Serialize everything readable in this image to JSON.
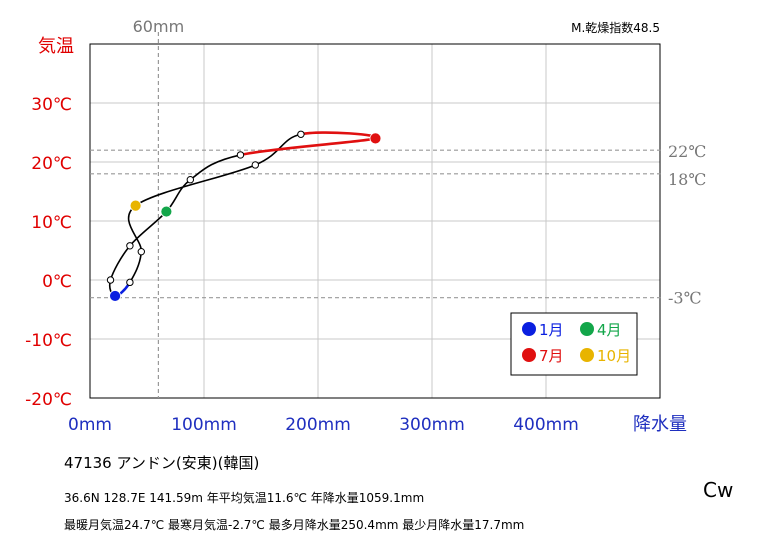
{
  "chart_data": {
    "type": "line",
    "y_axis_title": "気温",
    "x_axis_title": "降水量",
    "ylim": [
      -20,
      40
    ],
    "xlim": [
      0,
      500
    ],
    "y_ticks": [
      {
        "value": 30,
        "label": "30℃"
      },
      {
        "value": 20,
        "label": "20℃"
      },
      {
        "value": 10,
        "label": "10℃"
      },
      {
        "value": 0,
        "label": "0℃"
      },
      {
        "value": -10,
        "label": "-10℃"
      },
      {
        "value": -20,
        "label": "-20℃"
      }
    ],
    "x_ticks": [
      {
        "value": 0,
        "label": "0mm"
      },
      {
        "value": 100,
        "label": "100mm"
      },
      {
        "value": 200,
        "label": "200mm"
      },
      {
        "value": 300,
        "label": "300mm"
      },
      {
        "value": 400,
        "label": "400mm"
      }
    ],
    "reference_lines": {
      "vertical": [
        {
          "value": 60,
          "label": "60mm"
        }
      ],
      "horizontal": [
        {
          "value": 22,
          "label": "22℃"
        },
        {
          "value": 18,
          "label": "18℃"
        },
        {
          "value": -3,
          "label": "-3℃"
        }
      ]
    },
    "aridity_label": "M.乾燥指数48.5",
    "months": [
      {
        "month": 1,
        "precip": 22,
        "temp": -2.7
      },
      {
        "month": 2,
        "precip": 18,
        "temp": 0.0
      },
      {
        "month": 3,
        "precip": 35,
        "temp": 5.8
      },
      {
        "month": 4,
        "precip": 67,
        "temp": 11.6
      },
      {
        "month": 5,
        "precip": 88,
        "temp": 17.0
      },
      {
        "month": 6,
        "precip": 132,
        "temp": 21.2
      },
      {
        "month": 7,
        "precip": 250.4,
        "temp": 24.0
      },
      {
        "month": 8,
        "precip": 185,
        "temp": 24.7
      },
      {
        "month": 9,
        "precip": 145,
        "temp": 19.5
      },
      {
        "month": 10,
        "precip": 40,
        "temp": 12.6
      },
      {
        "month": 11,
        "precip": 45,
        "temp": 4.8
      },
      {
        "month": 12,
        "precip": 35,
        "temp": -0.4
      }
    ],
    "highlight": [
      {
        "month": 1,
        "label": "1月",
        "color": "#0a1fe0"
      },
      {
        "month": 4,
        "label": "4月",
        "color": "#13a64a"
      },
      {
        "month": 7,
        "label": "7月",
        "color": "#e01010"
      },
      {
        "month": 10,
        "label": "10月",
        "color": "#e8b400"
      }
    ],
    "colors": {
      "temp_axis": "#e00000",
      "precip_axis": "#1f2fbf",
      "winter_segment": "#0a1fe0",
      "summer_segment": "#e01010",
      "reference": "#999999"
    }
  },
  "station": {
    "title": "47136  アンドン(安東)(韓国)",
    "line1": "36.6N  128.7E 141.59m  年平均気温11.6℃ 年降水量1059.1mm",
    "line2": "最暖月気温24.7℃ 最寒月気温-2.7℃ 最多月降水量250.4mm 最少月降水量17.7mm"
  },
  "climate_class": "Cw"
}
